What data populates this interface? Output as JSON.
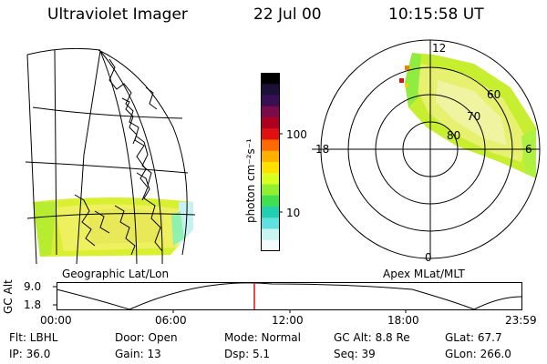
{
  "header": {
    "title": "Ultraviolet Imager",
    "date": "22 Jul 00",
    "time": "10:15:58 UT"
  },
  "geo_panel": {
    "label": "Geographic Lat/Lon"
  },
  "colorbar": {
    "unit": "photon cm⁻²s⁻¹",
    "ticks": [
      "100",
      "10"
    ],
    "colors": [
      "#000000",
      "#1a1038",
      "#3a0e55",
      "#7a0a4a",
      "#b00020",
      "#e01010",
      "#ff6a00",
      "#ffb000",
      "#ffe000",
      "#d8ff20",
      "#90f030",
      "#40e050",
      "#20d0b0",
      "#60e0e0",
      "#c8f4f4",
      "#f4fcfc"
    ]
  },
  "polar_panel": {
    "label": "Apex MLat/MLT",
    "mlt_labels": [
      "12",
      "18",
      "6",
      "0"
    ],
    "mlat_labels": [
      "60",
      "70",
      "80"
    ]
  },
  "timeline": {
    "axis_title": "GC Alt",
    "y_labels": [
      "9.0",
      "1.8"
    ],
    "x_labels": [
      "00:00",
      "06:00",
      "12:00",
      "18:00",
      "23:59"
    ],
    "marker_time": "10:15"
  },
  "info": {
    "filter": "Flt: LBHL",
    "ip": "IP: 36.0",
    "door": "Door: Open",
    "gain": "Gain: 13",
    "mode": "Mode: Normal",
    "dsp": "Dsp:    5.1",
    "gc_alt": "GC Alt: 8.8 Re",
    "seq": "Seq: 39",
    "glat": "GLat:   67.7",
    "glon": "GLon: 266.0"
  }
}
